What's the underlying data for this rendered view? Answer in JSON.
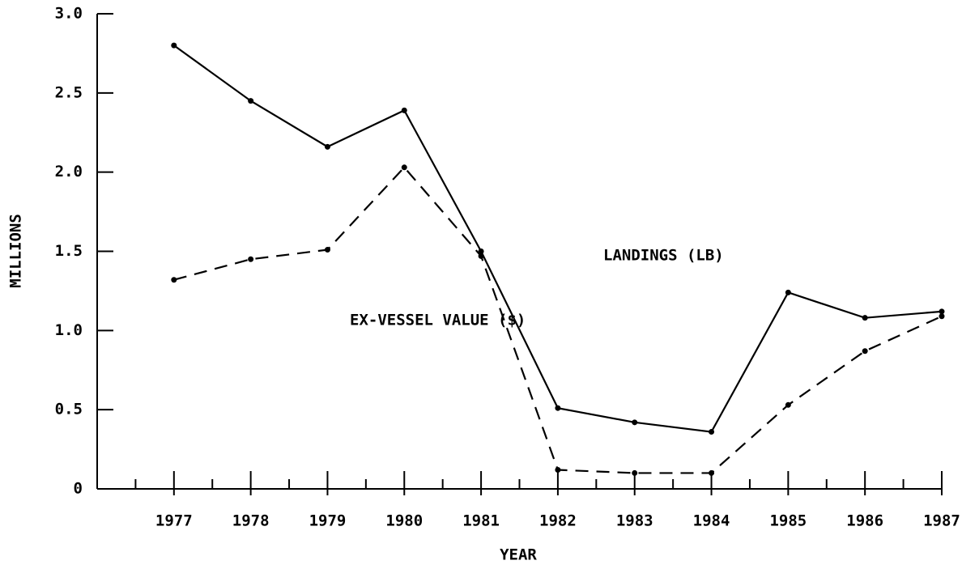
{
  "chart_data": {
    "type": "line",
    "x_label": "YEAR",
    "y_label": "MILLIONS",
    "x": [
      1977,
      1978,
      1979,
      1980,
      1981,
      1982,
      1983,
      1984,
      1985,
      1986,
      1987
    ],
    "series": [
      {
        "name": "LANDINGS (LB)",
        "color": "#000000",
        "line_style": "solid",
        "values": [
          2.8,
          2.45,
          2.16,
          2.39,
          1.5,
          0.51,
          0.42,
          0.36,
          1.24,
          1.08,
          1.12
        ]
      },
      {
        "name": "EX-VESSEL VALUE ($)",
        "color": "#000000",
        "line_style": "dashed",
        "values": [
          1.32,
          1.45,
          1.51,
          2.03,
          1.47,
          0.12,
          0.1,
          0.1,
          0.53,
          0.87,
          1.09
        ]
      }
    ],
    "xlim": [
      1976,
      1987
    ],
    "xticks": [
      1977,
      1978,
      1979,
      1980,
      1981,
      1982,
      1983,
      1984,
      1985,
      1986,
      1987
    ],
    "ylim": [
      0,
      3
    ],
    "yticks": [
      0,
      0.5,
      {
        "value": 1,
        "label": "1.0"
      },
      1.5,
      {
        "value": 2,
        "label": "2.0"
      },
      2.5,
      {
        "value": 3,
        "label": "3.0"
      }
    ],
    "grid": false
  }
}
